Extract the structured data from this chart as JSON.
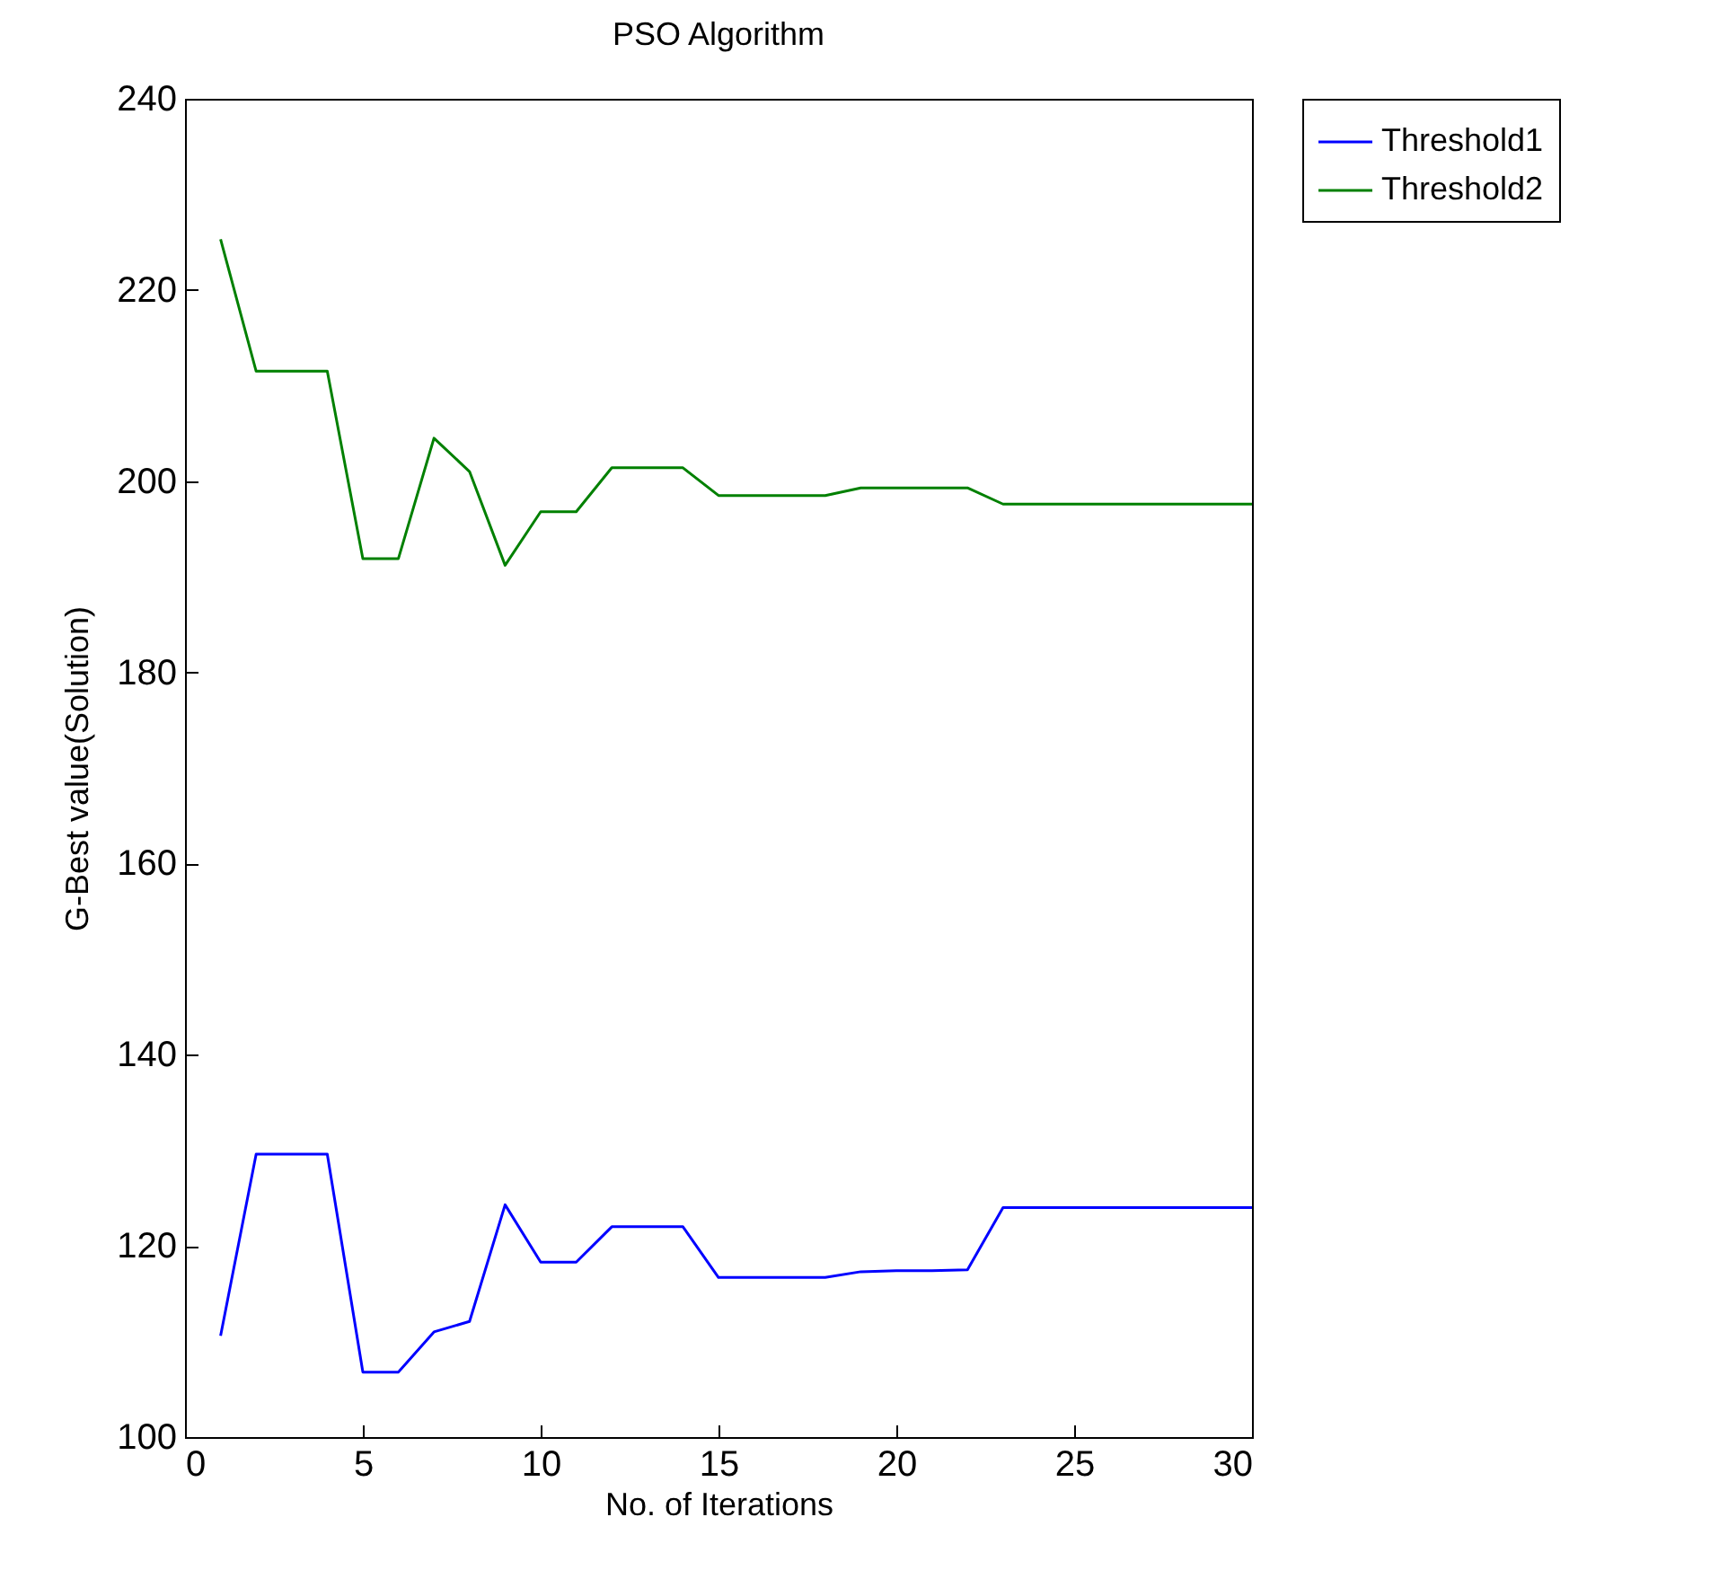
{
  "chart_data": {
    "type": "line",
    "title": "PSO Algorithm",
    "xlabel": "No. of Iterations",
    "ylabel": "G-Best value(Solution)",
    "x": [
      1,
      2,
      3,
      4,
      5,
      6,
      7,
      8,
      9,
      10,
      11,
      12,
      13,
      14,
      15,
      16,
      17,
      18,
      19,
      20,
      21,
      22,
      23,
      24,
      25,
      26,
      27,
      28,
      29,
      30
    ],
    "series": [
      {
        "name": "Threshold1",
        "color": "#0000ff",
        "values": [
          110.6,
          129.6,
          129.6,
          129.6,
          106.8,
          106.8,
          111,
          112.1,
          124.3,
          118.3,
          118.3,
          122,
          122,
          122,
          116.7,
          116.7,
          116.7,
          116.7,
          117.3,
          117.4,
          117.4,
          117.5,
          124,
          124,
          124,
          124,
          124,
          124,
          124,
          124
        ]
      },
      {
        "name": "Threshold2",
        "color": "#008000",
        "values": [
          225.3,
          211.5,
          211.5,
          211.5,
          191.9,
          191.9,
          204.5,
          201,
          191.2,
          196.8,
          196.8,
          201.4,
          201.4,
          201.4,
          198.5,
          198.5,
          198.5,
          198.5,
          199.3,
          199.3,
          199.3,
          199.3,
          197.6,
          197.6,
          197.6,
          197.6,
          197.6,
          197.6,
          197.6,
          197.6
        ]
      }
    ],
    "xlim": [
      0,
      30
    ],
    "xticks": [
      0,
      5,
      10,
      15,
      20,
      25,
      30
    ],
    "ylim": [
      100,
      240
    ],
    "yticks": [
      100,
      120,
      140,
      160,
      180,
      200,
      220,
      240
    ],
    "grid": false,
    "legend": "top right",
    "marker": "none",
    "line_style": "solid"
  }
}
